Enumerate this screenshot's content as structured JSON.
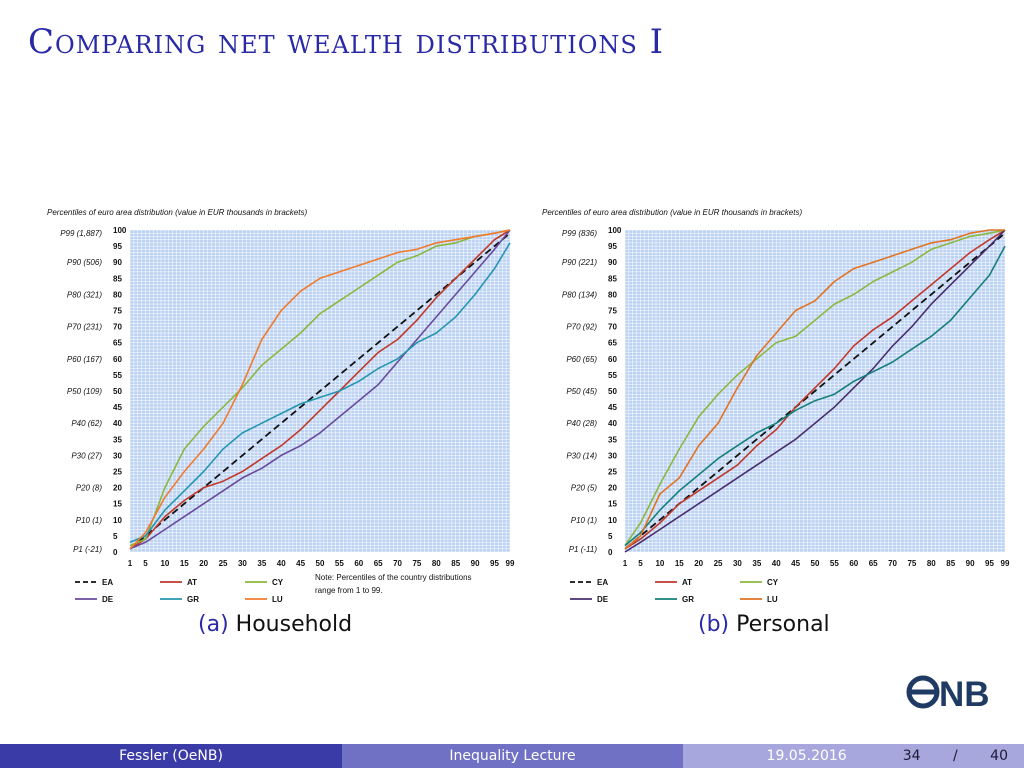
{
  "slide": {
    "title": "Comparing net wealth distributions I"
  },
  "captions": {
    "a_num": "(a)",
    "a_label": "Household",
    "b_num": "(b)",
    "b_label": "Personal"
  },
  "footer": {
    "author": "Fessler (OeNB)",
    "title": "Inequality Lecture",
    "date": "19.05.2016",
    "page": "34",
    "sep": "/",
    "total": "40"
  },
  "logo": {
    "text": "ONB"
  },
  "chart_data": [
    {
      "type": "line",
      "subtitle": "Percentiles of euro area distribution (value in EUR thousands in brackets)",
      "x_ticks": [
        1,
        5,
        10,
        15,
        20,
        25,
        30,
        35,
        40,
        45,
        50,
        55,
        60,
        65,
        70,
        75,
        80,
        85,
        90,
        95,
        99
      ],
      "y_ticks": [
        0,
        5,
        10,
        15,
        20,
        25,
        30,
        35,
        40,
        45,
        50,
        55,
        60,
        65,
        70,
        75,
        80,
        85,
        90,
        95,
        100
      ],
      "xlim": [
        1,
        99
      ],
      "ylim": [
        0,
        100
      ],
      "grid": true,
      "legend": "bottom",
      "category_labels": [
        {
          "y": 1,
          "label": "P1 (-21)"
        },
        {
          "y": 10,
          "label": "P10 (1)"
        },
        {
          "y": 20,
          "label": "P20 (8)"
        },
        {
          "y": 30,
          "label": "P30 (27)"
        },
        {
          "y": 40,
          "label": "P40 (62)"
        },
        {
          "y": 50,
          "label": "P50 (109)"
        },
        {
          "y": 60,
          "label": "P60 (167)"
        },
        {
          "y": 70,
          "label": "P70 (231)"
        },
        {
          "y": 80,
          "label": "P80 (321)"
        },
        {
          "y": 90,
          "label": "P90 (506)"
        },
        {
          "y": 99,
          "label": "P99 (1,887)"
        }
      ],
      "note": [
        "Note: Percentiles of the country distributions",
        "range from 1 to 99."
      ],
      "x": [
        1,
        5,
        10,
        15,
        20,
        25,
        30,
        35,
        40,
        45,
        50,
        55,
        60,
        65,
        70,
        75,
        80,
        85,
        90,
        95,
        99
      ],
      "series": [
        {
          "name": "EA",
          "color": "#111111",
          "dash": true,
          "values": [
            1,
            5,
            10,
            15,
            20,
            25,
            30,
            35,
            40,
            45,
            50,
            55,
            60,
            65,
            70,
            75,
            80,
            85,
            90,
            95,
            99
          ]
        },
        {
          "name": "AT",
          "color": "#c0392b",
          "values": [
            1,
            4,
            11,
            16,
            20,
            22,
            25,
            29,
            33,
            38,
            44,
            50,
            56,
            62,
            66,
            72,
            79,
            85,
            91,
            97,
            100
          ]
        },
        {
          "name": "CY",
          "color": "#8bb83f",
          "values": [
            2,
            4,
            20,
            32,
            39,
            45,
            51,
            58,
            63,
            68,
            74,
            78,
            82,
            86,
            90,
            92,
            95,
            96,
            98,
            99,
            100
          ]
        },
        {
          "name": "DE",
          "color": "#6a4a9c",
          "values": [
            1,
            3,
            7,
            11,
            15,
            19,
            23,
            26,
            30,
            33,
            37,
            42,
            47,
            52,
            59,
            66,
            73,
            80,
            87,
            94,
            100
          ]
        },
        {
          "name": "GR",
          "color": "#2596b0",
          "values": [
            3,
            5,
            13,
            19,
            25,
            32,
            37,
            40,
            43,
            46,
            48,
            50,
            53,
            57,
            60,
            65,
            68,
            73,
            80,
            88,
            96
          ]
        },
        {
          "name": "LU",
          "color": "#f07b2e",
          "values": [
            1,
            6,
            17,
            25,
            32,
            40,
            52,
            66,
            75,
            81,
            85,
            87,
            89,
            91,
            93,
            94,
            96,
            97,
            98,
            99,
            100
          ]
        }
      ]
    },
    {
      "type": "line",
      "subtitle": "Percentiles of euro area distribution (value in EUR thousands in brackets)",
      "x_ticks": [
        1,
        5,
        10,
        15,
        20,
        25,
        30,
        35,
        40,
        45,
        50,
        55,
        60,
        65,
        70,
        75,
        80,
        85,
        90,
        95,
        99
      ],
      "y_ticks": [
        0,
        5,
        10,
        15,
        20,
        25,
        30,
        35,
        40,
        45,
        50,
        55,
        60,
        65,
        70,
        75,
        80,
        85,
        90,
        95,
        100
      ],
      "xlim": [
        1,
        99
      ],
      "ylim": [
        0,
        100
      ],
      "grid": true,
      "legend": "bottom",
      "category_labels": [
        {
          "y": 1,
          "label": "P1 (-11)"
        },
        {
          "y": 10,
          "label": "P10 (1)"
        },
        {
          "y": 20,
          "label": "P20 (5)"
        },
        {
          "y": 30,
          "label": "P30 (14)"
        },
        {
          "y": 40,
          "label": "P40 (28)"
        },
        {
          "y": 50,
          "label": "P50 (45)"
        },
        {
          "y": 60,
          "label": "P60 (65)"
        },
        {
          "y": 70,
          "label": "P70 (92)"
        },
        {
          "y": 80,
          "label": "P80 (134)"
        },
        {
          "y": 90,
          "label": "P90 (221)"
        },
        {
          "y": 99,
          "label": "P99 (836)"
        }
      ],
      "x": [
        1,
        5,
        10,
        15,
        20,
        25,
        30,
        35,
        40,
        45,
        50,
        55,
        60,
        65,
        70,
        75,
        80,
        85,
        90,
        95,
        99
      ],
      "series": [
        {
          "name": "EA",
          "color": "#111111",
          "dash": true,
          "values": [
            1,
            5,
            10,
            15,
            20,
            25,
            30,
            35,
            40,
            45,
            50,
            55,
            60,
            65,
            70,
            75,
            80,
            85,
            90,
            95,
            99
          ]
        },
        {
          "name": "AT",
          "color": "#c0392b",
          "values": [
            1,
            4,
            9,
            15,
            19,
            23,
            27,
            33,
            38,
            45,
            51,
            57,
            64,
            69,
            73,
            78,
            83,
            88,
            93,
            97,
            100
          ]
        },
        {
          "name": "CY",
          "color": "#8bb83f",
          "values": [
            2,
            9,
            21,
            32,
            42,
            49,
            55,
            60,
            65,
            67,
            72,
            77,
            80,
            84,
            87,
            90,
            94,
            96,
            98,
            99,
            100
          ]
        },
        {
          "name": "DE",
          "color": "#4a2e6e",
          "values": [
            0,
            3,
            7,
            11,
            15,
            19,
            23,
            27,
            31,
            35,
            40,
            45,
            51,
            57,
            64,
            70,
            77,
            83,
            89,
            95,
            100
          ]
        },
        {
          "name": "GR",
          "color": "#167f7a",
          "values": [
            2,
            6,
            13,
            19,
            24,
            29,
            33,
            37,
            40,
            44,
            47,
            49,
            53,
            56,
            59,
            63,
            67,
            72,
            79,
            86,
            95
          ]
        },
        {
          "name": "LU",
          "color": "#e07424",
          "values": [
            1,
            5,
            18,
            23,
            33,
            40,
            51,
            61,
            68,
            75,
            78,
            84,
            88,
            90,
            92,
            94,
            96,
            97,
            99,
            100,
            100
          ]
        }
      ]
    }
  ]
}
